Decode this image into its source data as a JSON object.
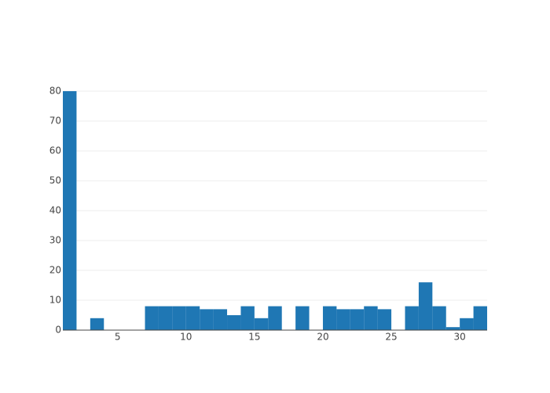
{
  "chart_data": {
    "type": "histogram",
    "bins": [
      1,
      2,
      3,
      4,
      5,
      6,
      7,
      8,
      9,
      10,
      11,
      12,
      13,
      14,
      15,
      16,
      17,
      18,
      19,
      20,
      21,
      22,
      23,
      24,
      25,
      26,
      27,
      28,
      29,
      30,
      31,
      32
    ],
    "counts": [
      80,
      0,
      4,
      0,
      0,
      0,
      8,
      8,
      8,
      8,
      7,
      7,
      5,
      8,
      4,
      8,
      0,
      8,
      0,
      8,
      7,
      7,
      8,
      7,
      0,
      8,
      16,
      8,
      1,
      4,
      8
    ],
    "color": "#1f77b4",
    "xlim": [
      1,
      32
    ],
    "xticks": [
      5,
      10,
      15,
      20,
      25,
      30
    ],
    "ylim": [
      0,
      84.2
    ],
    "yticks": [
      0,
      10,
      20,
      30,
      40,
      50,
      60,
      70,
      80
    ],
    "grid": true
  }
}
